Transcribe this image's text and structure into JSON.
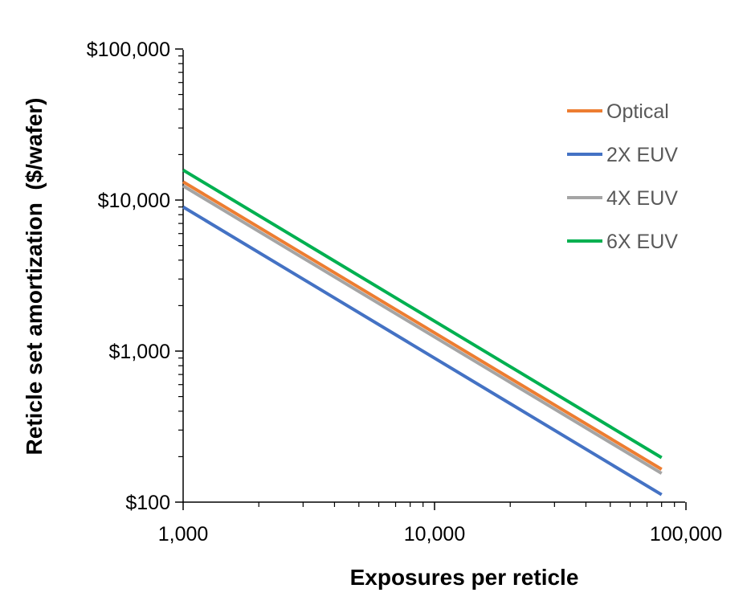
{
  "chart_data": {
    "type": "line",
    "title": "",
    "xlabel": "Exposures per reticle",
    "ylabel": "Reticle set amortization  ($/wafer)",
    "x_scale": "log",
    "y_scale": "log",
    "xlim": [
      1000,
      100000
    ],
    "ylim": [
      100,
      100000
    ],
    "x_ticks": [
      1000,
      10000,
      100000
    ],
    "x_tick_labels": [
      "1,000",
      "10,000",
      "100,000"
    ],
    "y_ticks": [
      100,
      1000,
      10000,
      100000
    ],
    "y_tick_labels": [
      "$100",
      "$1,000",
      "$10,000",
      "$100,000"
    ],
    "grid": false,
    "legend_position": "top-right",
    "series": [
      {
        "name": "Optical",
        "color": "#ED7D31",
        "x": [
          1000,
          80000
        ],
        "y": [
          13200,
          165
        ]
      },
      {
        "name": "2X EUV",
        "color": "#4472C4",
        "x": [
          1000,
          80000
        ],
        "y": [
          9000,
          112
        ]
      },
      {
        "name": "4X EUV",
        "color": "#A5A5A5",
        "x": [
          1000,
          80000
        ],
        "y": [
          12400,
          155
        ]
      },
      {
        "name": "6X EUV",
        "color": "#00B050",
        "x": [
          1000,
          80000
        ],
        "y": [
          15800,
          197
        ]
      }
    ]
  }
}
